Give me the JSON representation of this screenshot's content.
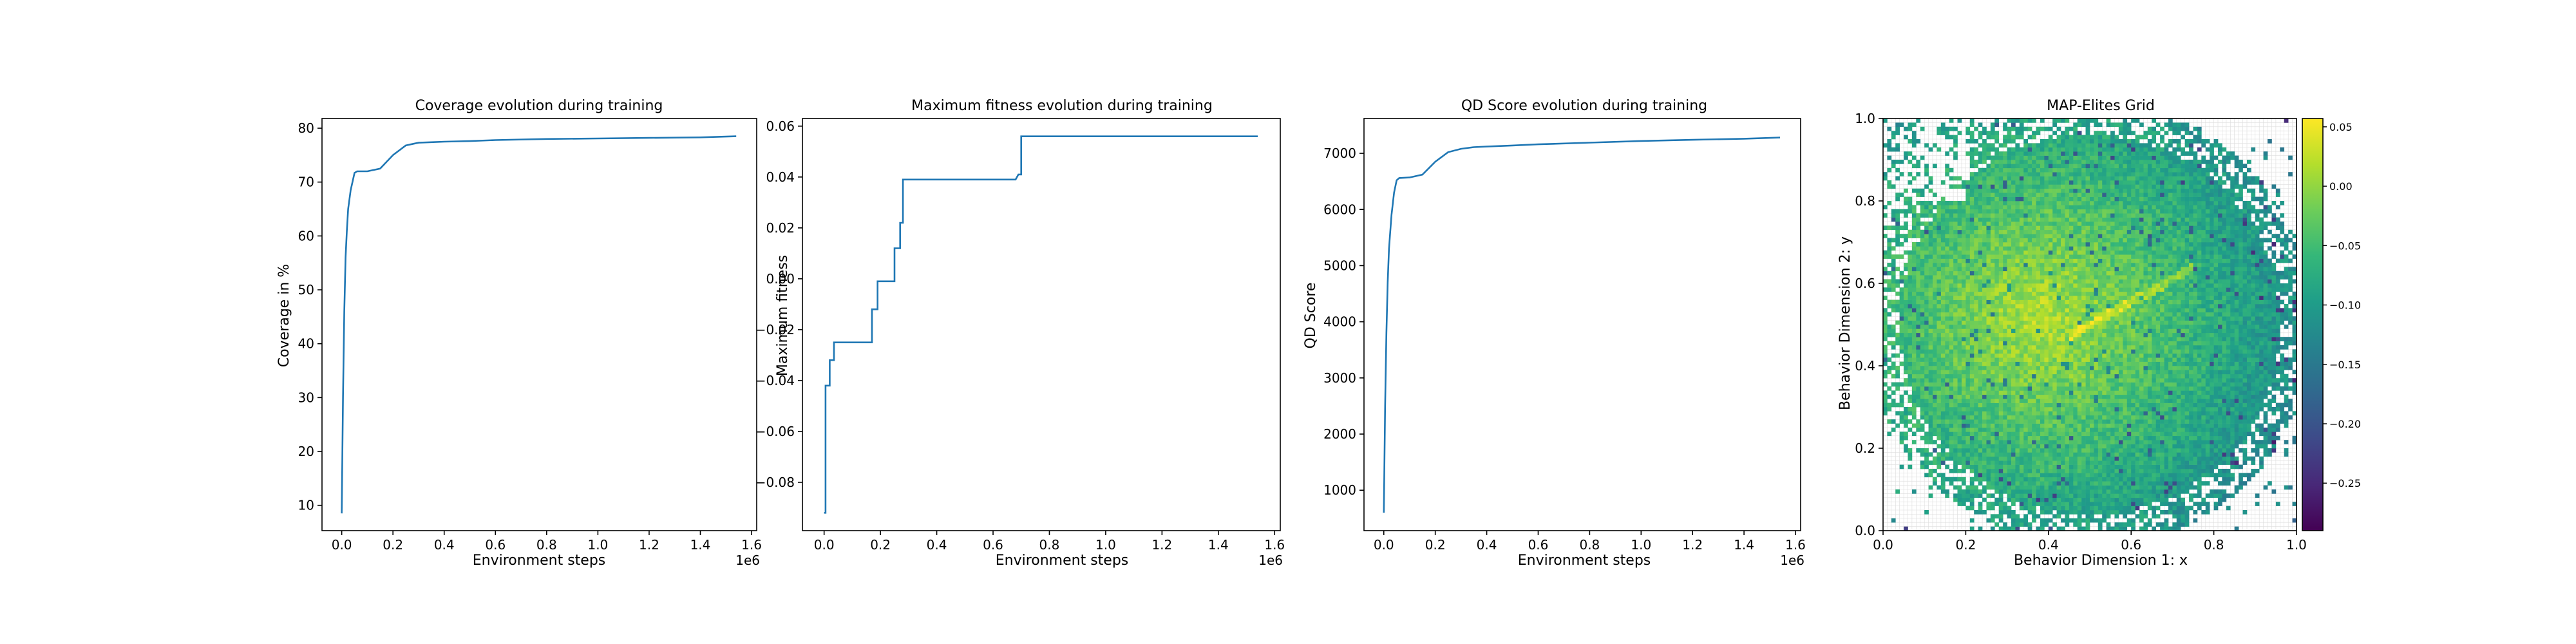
{
  "colors": {
    "line": "#1f77b4",
    "axis": "#000000",
    "empty_cell_grid": "#dddddd"
  },
  "chart_data": [
    {
      "type": "line",
      "title": "Coverage evolution during training",
      "xlabel": "Environment steps",
      "ylabel": "Coverage in %",
      "x_offset_label": "1e6",
      "xlim": [
        -0.077,
        1.62
      ],
      "ylim": [
        5.3,
        81.8
      ],
      "xticks": [
        0.0,
        0.2,
        0.4,
        0.6,
        0.8,
        1.0,
        1.2,
        1.4,
        1.6
      ],
      "xtick_labels": [
        "0.0",
        "0.2",
        "0.4",
        "0.6",
        "0.8",
        "1.0",
        "1.2",
        "1.4",
        "1.6"
      ],
      "yticks": [
        10,
        20,
        30,
        40,
        50,
        60,
        70,
        80
      ],
      "ytick_labels": [
        "10",
        "20",
        "30",
        "40",
        "50",
        "60",
        "70",
        "80"
      ],
      "series": [
        {
          "x": [
            0.0,
            0.005,
            0.01,
            0.015,
            0.02,
            0.025,
            0.035,
            0.05,
            0.06,
            0.1,
            0.15,
            0.2,
            0.25,
            0.3,
            0.35,
            0.4,
            0.5,
            0.6,
            0.8,
            1.0,
            1.2,
            1.4,
            1.54
          ],
          "y": [
            8.5,
            30,
            46,
            56,
            61,
            65,
            68.5,
            71.7,
            72,
            72,
            72.5,
            75,
            76.8,
            77.3,
            77.4,
            77.5,
            77.6,
            77.8,
            78,
            78.1,
            78.2,
            78.3,
            78.5
          ]
        }
      ]
    },
    {
      "type": "line",
      "title": "Maximum fitness evolution during training",
      "xlabel": "Environment steps",
      "ylabel": "Maximum fitness",
      "x_offset_label": "1e6",
      "xlim": [
        -0.077,
        1.62
      ],
      "ylim": [
        -0.099,
        0.063
      ],
      "xticks": [
        0.0,
        0.2,
        0.4,
        0.6,
        0.8,
        1.0,
        1.2,
        1.4,
        1.6
      ],
      "xtick_labels": [
        "0.0",
        "0.2",
        "0.4",
        "0.6",
        "0.8",
        "1.0",
        "1.2",
        "1.4",
        "1.6"
      ],
      "yticks": [
        -0.08,
        -0.06,
        -0.04,
        -0.02,
        0.0,
        0.02,
        0.04,
        0.06
      ],
      "ytick_labels": [
        "−0.08",
        "−0.06",
        "−0.04",
        "−0.02",
        "0.00",
        "0.02",
        "0.04",
        "0.06"
      ],
      "series": [
        {
          "x": [
            0.0,
            0.005,
            0.005,
            0.02,
            0.02,
            0.035,
            0.035,
            0.17,
            0.17,
            0.19,
            0.19,
            0.22,
            0.22,
            0.25,
            0.25,
            0.27,
            0.27,
            0.28,
            0.28,
            0.68,
            0.69,
            0.7,
            0.7,
            1.54
          ],
          "y": [
            -0.092,
            -0.092,
            -0.042,
            -0.042,
            -0.032,
            -0.032,
            -0.025,
            -0.025,
            -0.012,
            -0.012,
            -0.001,
            -0.001,
            -0.001,
            -0.001,
            0.012,
            0.012,
            0.022,
            0.022,
            0.039,
            0.039,
            0.041,
            0.041,
            0.056,
            0.056
          ]
        }
      ]
    },
    {
      "type": "line",
      "title": "QD Score evolution during training",
      "xlabel": "Environment steps",
      "ylabel": "QD Score",
      "x_offset_label": "1e6",
      "xlim": [
        -0.077,
        1.62
      ],
      "ylim": [
        280,
        7620
      ],
      "xticks": [
        0.0,
        0.2,
        0.4,
        0.6,
        0.8,
        1.0,
        1.2,
        1.4,
        1.6
      ],
      "xtick_labels": [
        "0.0",
        "0.2",
        "0.4",
        "0.6",
        "0.8",
        "1.0",
        "1.2",
        "1.4",
        "1.6"
      ],
      "yticks": [
        1000,
        2000,
        3000,
        4000,
        5000,
        6000,
        7000
      ],
      "ytick_labels": [
        "1000",
        "2000",
        "3000",
        "4000",
        "5000",
        "6000",
        "7000"
      ],
      "series": [
        {
          "x": [
            0.0,
            0.005,
            0.01,
            0.015,
            0.02,
            0.03,
            0.04,
            0.05,
            0.06,
            0.1,
            0.15,
            0.2,
            0.25,
            0.3,
            0.35,
            0.4,
            0.5,
            0.6,
            0.8,
            1.0,
            1.2,
            1.4,
            1.54
          ],
          "y": [
            600,
            2500,
            3800,
            4700,
            5300,
            5900,
            6300,
            6520,
            6560,
            6570,
            6620,
            6850,
            7020,
            7080,
            7110,
            7120,
            7140,
            7160,
            7190,
            7220,
            7240,
            7260,
            7280
          ]
        }
      ]
    },
    {
      "type": "heatmap",
      "title": "MAP-Elites Grid",
      "xlabel": "Behavior Dimension 1: x",
      "ylabel": "Behavior Dimension 2: y",
      "xlim": [
        0.0,
        1.0
      ],
      "ylim": [
        0.0,
        1.0
      ],
      "xticks": [
        0.0,
        0.2,
        0.4,
        0.6,
        0.8,
        1.0
      ],
      "xtick_labels": [
        "0.0",
        "0.2",
        "0.4",
        "0.6",
        "0.8",
        "1.0"
      ],
      "yticks": [
        0.0,
        0.2,
        0.4,
        0.6,
        0.8,
        1.0
      ],
      "ytick_labels": [
        "0.0",
        "0.2",
        "0.4",
        "0.6",
        "0.8",
        "1.0"
      ],
      "grid_cells": [
        100,
        100
      ],
      "filled_region": {
        "center": [
          0.5,
          0.5
        ],
        "radius": 0.52,
        "sparse_corner": "top-left"
      },
      "high_fitness_center": [
        0.38,
        0.52
      ],
      "colormap": "viridis",
      "colorbar": {
        "min": -0.29,
        "max": 0.057,
        "ticks": [
          0.05,
          0.0,
          -0.05,
          -0.1,
          -0.15,
          -0.2,
          -0.25
        ],
        "tick_labels": [
          "0.05",
          "0.00",
          "−0.05",
          "−0.10",
          "−0.15",
          "−0.20",
          "−0.25"
        ]
      }
    }
  ]
}
